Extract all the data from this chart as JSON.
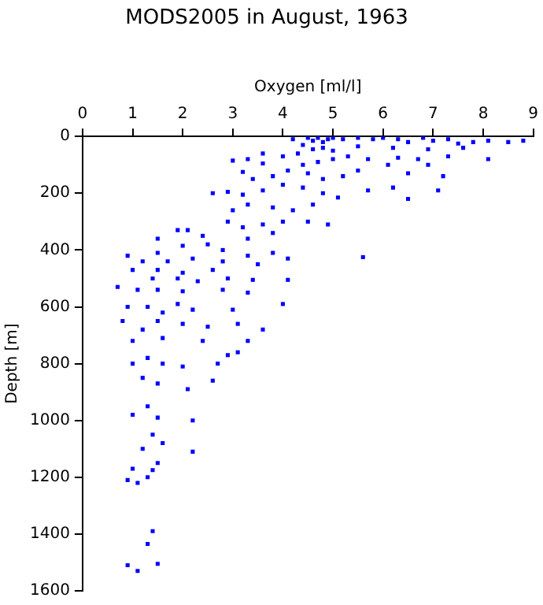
{
  "chart_data": {
    "type": "scatter",
    "title": "MODS2005 in August, 1963",
    "xlabel": "Oxygen [ml/l]",
    "ylabel": "Depth [m]",
    "xlim": [
      0,
      9
    ],
    "xticks": [
      0,
      1,
      2,
      3,
      4,
      5,
      6,
      7,
      8,
      9
    ],
    "ylim": [
      1600,
      0
    ],
    "yticks": [
      0,
      200,
      400,
      600,
      800,
      1000,
      1200,
      1400,
      1600
    ],
    "grid": false,
    "legend": false,
    "marker": "square",
    "series": [
      {
        "color": "#0000ff",
        "x": [
          4.2,
          4.5,
          4.6,
          4.7,
          4.8,
          4.9,
          5.0,
          5.2,
          5.5,
          5.8,
          6.0,
          6.3,
          6.5,
          6.8,
          7.0,
          7.3,
          7.5,
          7.8,
          8.1,
          8.5,
          8.8,
          7.6,
          6.9,
          6.2,
          5.5,
          4.4,
          4.6,
          4.8,
          5.0,
          4.3,
          4.0,
          3.6,
          3.3,
          3.0,
          3.6,
          4.4,
          4.7,
          5.0,
          5.3,
          5.7,
          6.3,
          6.7,
          7.3,
          8.1,
          6.1,
          6.5,
          7.2,
          6.9,
          5.5,
          5.2,
          4.8,
          4.5,
          4.1,
          3.8,
          3.4,
          3.2,
          2.6,
          2.9,
          3.2,
          3.6,
          4.0,
          4.4,
          4.8,
          5.1,
          5.7,
          6.2,
          6.5,
          7.1,
          4.6,
          4.2,
          3.8,
          3.3,
          3.0,
          2.9,
          3.2,
          3.6,
          4.0,
          4.5,
          4.9,
          3.8,
          3.3,
          2.4,
          2.1,
          1.9,
          1.5,
          2.0,
          2.5,
          2.8,
          1.5,
          1.2,
          0.9,
          1.7,
          2.2,
          2.8,
          3.3,
          3.8,
          4.1,
          5.6,
          3.5,
          2.6,
          2.0,
          1.5,
          1.0,
          1.4,
          1.9,
          2.3,
          2.9,
          3.4,
          4.1,
          0.7,
          1.1,
          1.5,
          2.0,
          2.8,
          3.3,
          1.9,
          1.3,
          0.9,
          1.6,
          2.2,
          3.0,
          4.0,
          0.8,
          1.5,
          2.0,
          2.5,
          3.1,
          3.6,
          1.2,
          1.0,
          1.6,
          2.4,
          3.3,
          2.9,
          3.1,
          1.0,
          1.3,
          1.6,
          2.0,
          2.7,
          1.2,
          1.5,
          2.1,
          2.6,
          1.3,
          1.0,
          1.5,
          2.2,
          1.4,
          1.6,
          1.2,
          1.0,
          1.3,
          1.5,
          1.1,
          0.9,
          1.4,
          2.2,
          1.4,
          1.3,
          0.9,
          1.5,
          1.1
        ],
        "values": [
          10,
          5,
          15,
          5,
          20,
          10,
          5,
          10,
          5,
          10,
          5,
          10,
          20,
          5,
          15,
          10,
          25,
          20,
          15,
          20,
          15,
          40,
          45,
          40,
          35,
          30,
          45,
          40,
          50,
          60,
          70,
          60,
          80,
          85,
          95,
          100,
          90,
          80,
          70,
          80,
          75,
          80,
          70,
          80,
          100,
          130,
          140,
          100,
          120,
          140,
          150,
          130,
          120,
          140,
          150,
          125,
          200,
          195,
          205,
          190,
          170,
          180,
          200,
          215,
          190,
          180,
          220,
          190,
          240,
          260,
          250,
          240,
          260,
          300,
          320,
          310,
          300,
          300,
          310,
          340,
          360,
          350,
          330,
          330,
          360,
          385,
          380,
          400,
          410,
          440,
          420,
          440,
          430,
          440,
          420,
          410,
          430,
          425,
          450,
          470,
          480,
          470,
          470,
          500,
          500,
          510,
          500,
          505,
          505,
          530,
          540,
          540,
          545,
          540,
          550,
          590,
          600,
          600,
          620,
          610,
          610,
          590,
          650,
          650,
          660,
          670,
          660,
          680,
          680,
          720,
          710,
          720,
          720,
          770,
          760,
          800,
          780,
          800,
          810,
          800,
          850,
          870,
          890,
          860,
          950,
          980,
          990,
          1000,
          1050,
          1080,
          1100,
          1170,
          1200,
          1150,
          1220,
          1210,
          1175,
          1110,
          1390,
          1435,
          1510,
          1505,
          1530
        ]
      }
    ]
  }
}
